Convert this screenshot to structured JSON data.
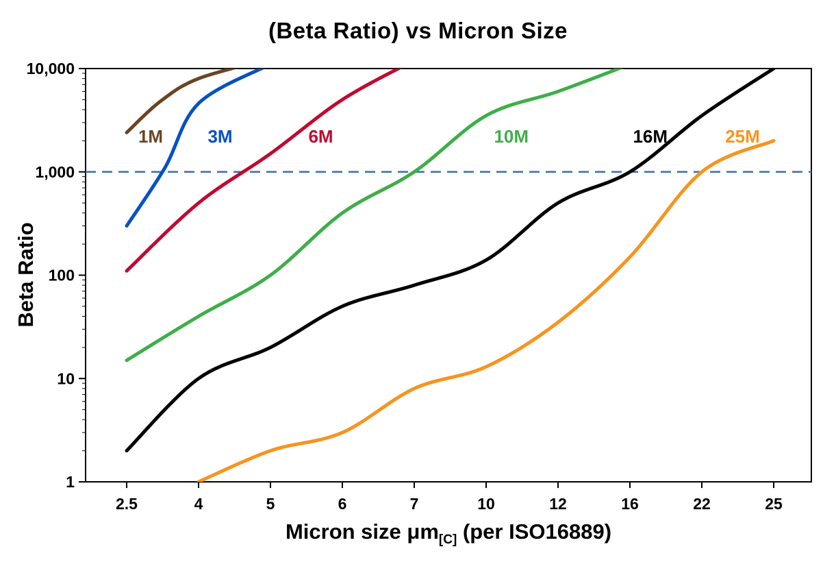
{
  "title": "(Beta Ratio) vs Micron Size",
  "y_axis_label": "Beta Ratio",
  "x_axis_label": {
    "prefix": "Micron size μm",
    "subscript": "[C]",
    "suffix": " (per ISO16889)"
  },
  "chart_data": {
    "type": "line",
    "title": "(Beta Ratio) vs Micron Size",
    "xlabel": "Micron size μm[C] (per ISO16889)",
    "ylabel": "Beta Ratio",
    "x_scale": "categorical",
    "y_scale": "log",
    "grid": false,
    "categories": [
      2.5,
      4,
      5,
      6,
      7,
      10,
      12,
      16,
      22,
      25
    ],
    "category_labels": [
      "2.5",
      "4",
      "5",
      "6",
      "7",
      "10",
      "12",
      "16",
      "22",
      "25"
    ],
    "ylim": [
      1,
      10000
    ],
    "y_ticks": [
      {
        "value": 1,
        "label": "1"
      },
      {
        "value": 10,
        "label": "10"
      },
      {
        "value": 100,
        "label": "100"
      },
      {
        "value": 1000,
        "label": "1,000"
      },
      {
        "value": 10000,
        "label": "10,000"
      }
    ],
    "reference_line": {
      "value": 1000,
      "color": "#3a6db5",
      "style": "dashed"
    },
    "series": [
      {
        "name": "1M",
        "color": "#6b4423",
        "label_at": [
          3.0,
          2200
        ],
        "points": [
          [
            2.5,
            2400
          ],
          [
            3.2,
            4800
          ],
          [
            4,
            8000
          ],
          [
            5,
            12500
          ]
        ]
      },
      {
        "name": "3M",
        "color": "#0551c5",
        "label_at": [
          4.3,
          2200
        ],
        "points": [
          [
            2.5,
            300
          ],
          [
            3.3,
            1100
          ],
          [
            4,
            4600
          ],
          [
            5,
            11000
          ]
        ]
      },
      {
        "name": "6M",
        "color": "#c00a30",
        "label_at": [
          5.7,
          2200
        ],
        "points": [
          [
            2.5,
            110
          ],
          [
            4,
            500
          ],
          [
            5,
            1500
          ],
          [
            6,
            5000
          ],
          [
            7,
            12000
          ]
        ]
      },
      {
        "name": "10M",
        "color": "#3fae49",
        "label_at": [
          10.7,
          2200
        ],
        "points": [
          [
            2.5,
            15
          ],
          [
            4,
            40
          ],
          [
            5,
            100
          ],
          [
            6,
            400
          ],
          [
            7,
            1000
          ],
          [
            10,
            3500
          ],
          [
            12,
            6000
          ],
          [
            16,
            11000
          ]
        ]
      },
      {
        "name": "16M",
        "color": "#000000",
        "label_at": [
          17.7,
          2200
        ],
        "points": [
          [
            2.5,
            2
          ],
          [
            4,
            10
          ],
          [
            5,
            20
          ],
          [
            6,
            50
          ],
          [
            7,
            80
          ],
          [
            10,
            140
          ],
          [
            12,
            500
          ],
          [
            16,
            1000
          ],
          [
            22,
            3500
          ],
          [
            25,
            10000
          ]
        ]
      },
      {
        "name": "25M",
        "color": "#f7941e",
        "label_at": [
          23.7,
          2200
        ],
        "points": [
          [
            4,
            1
          ],
          [
            5,
            2
          ],
          [
            6,
            3
          ],
          [
            7,
            8
          ],
          [
            10,
            13
          ],
          [
            12,
            35
          ],
          [
            16,
            150
          ],
          [
            22,
            1000
          ],
          [
            25,
            2000
          ]
        ]
      }
    ]
  }
}
